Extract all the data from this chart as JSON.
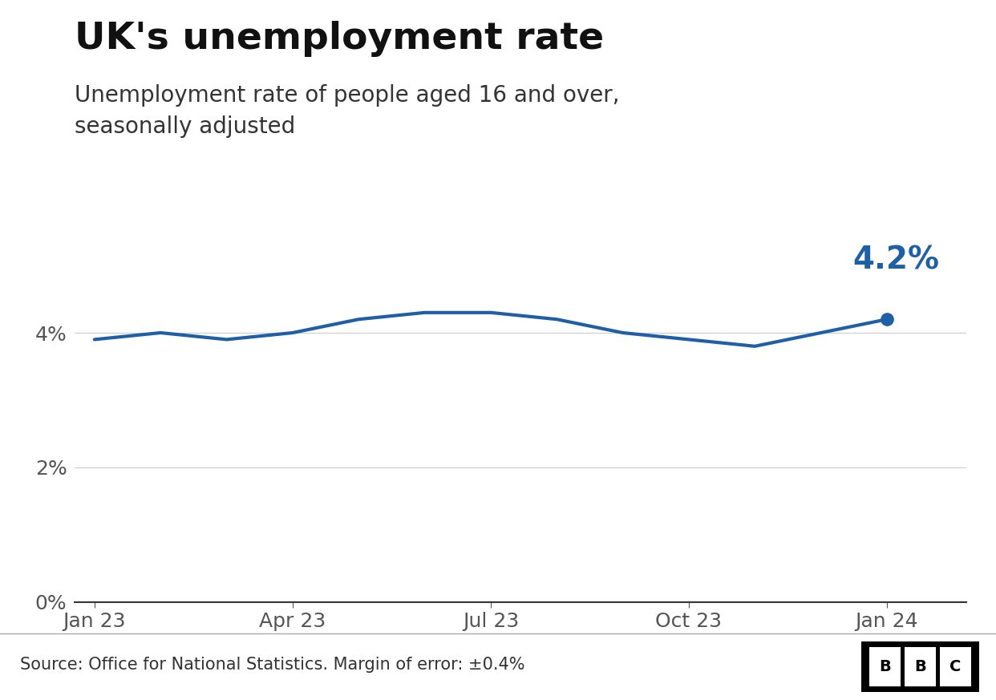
{
  "title": "UK's unemployment rate",
  "subtitle": "Unemployment rate of people aged 16 and over,\nseasonally adjusted",
  "source": "Source: Office for National Statistics. Margin of error: ±0.4%",
  "last_value_label": "4.2%",
  "line_color": "#1f5fa6",
  "background_color": "#ffffff",
  "x_values": [
    0,
    1,
    2,
    3,
    4,
    5,
    6,
    7,
    8,
    9,
    10,
    11,
    12
  ],
  "y_values": [
    3.9,
    4.0,
    3.9,
    4.0,
    4.2,
    4.3,
    4.3,
    4.2,
    4.0,
    3.9,
    3.8,
    4.0,
    4.2
  ],
  "x_tick_positions": [
    0,
    3,
    6,
    9,
    12
  ],
  "x_tick_labels": [
    "Jan 23",
    "Apr 23",
    "Jul 23",
    "Oct 23",
    "Jan 24"
  ],
  "y_tick_positions": [
    0,
    2,
    4
  ],
  "y_tick_labels": [
    "0%",
    "2%",
    "4%"
  ],
  "ylim": [
    0,
    5.2
  ],
  "xlim": [
    -0.3,
    13.2
  ],
  "grid_color": "#cccccc",
  "title_fontsize": 34,
  "subtitle_fontsize": 20,
  "axis_label_fontsize": 18,
  "annotation_fontsize": 28,
  "source_fontsize": 15,
  "line_width": 3.0,
  "marker_size": 11
}
